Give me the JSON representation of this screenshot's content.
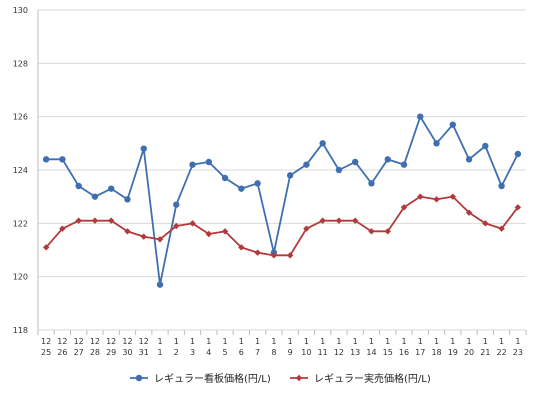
{
  "chart_data": {
    "type": "line",
    "title": "",
    "xlabel": "",
    "ylabel": "",
    "ylim": [
      118,
      130
    ],
    "y_ticks": [
      118,
      120,
      122,
      124,
      126,
      128,
      130
    ],
    "grid": "horizontal",
    "legend_position": "bottom",
    "categories": [
      {
        "month": "12",
        "day": "25"
      },
      {
        "month": "12",
        "day": "26"
      },
      {
        "month": "12",
        "day": "27"
      },
      {
        "month": "12",
        "day": "28"
      },
      {
        "month": "12",
        "day": "29"
      },
      {
        "month": "12",
        "day": "30"
      },
      {
        "month": "12",
        "day": "31"
      },
      {
        "month": "1",
        "day": "1"
      },
      {
        "month": "1",
        "day": "2"
      },
      {
        "month": "1",
        "day": "3"
      },
      {
        "month": "1",
        "day": "4"
      },
      {
        "month": "1",
        "day": "5"
      },
      {
        "month": "1",
        "day": "6"
      },
      {
        "month": "1",
        "day": "7"
      },
      {
        "month": "1",
        "day": "8"
      },
      {
        "month": "1",
        "day": "9"
      },
      {
        "month": "1",
        "day": "10"
      },
      {
        "month": "1",
        "day": "11"
      },
      {
        "month": "1",
        "day": "12"
      },
      {
        "month": "1",
        "day": "13"
      },
      {
        "month": "1",
        "day": "14"
      },
      {
        "month": "1",
        "day": "15"
      },
      {
        "month": "1",
        "day": "16"
      },
      {
        "month": "1",
        "day": "17"
      },
      {
        "month": "1",
        "day": "18"
      },
      {
        "month": "1",
        "day": "19"
      },
      {
        "month": "1",
        "day": "20"
      },
      {
        "month": "1",
        "day": "21"
      },
      {
        "month": "1",
        "day": "22"
      },
      {
        "month": "1",
        "day": "23"
      }
    ],
    "series": [
      {
        "name": "レギュラー看板価格(円/L)",
        "color": "#3f6fb0",
        "marker": "circle",
        "values": [
          124.4,
          124.4,
          123.4,
          123.0,
          123.3,
          122.9,
          124.8,
          119.7,
          122.7,
          124.2,
          124.3,
          123.7,
          123.3,
          123.5,
          120.9,
          123.8,
          124.2,
          125.0,
          124.0,
          124.3,
          123.5,
          124.4,
          124.2,
          126.0,
          125.0,
          125.7,
          124.4,
          124.9,
          123.4,
          124.6
        ]
      },
      {
        "name": "レギュラー実売価格(円/L)",
        "color": "#b23a3a",
        "marker": "diamond",
        "values": [
          121.1,
          121.8,
          122.1,
          122.1,
          122.1,
          121.7,
          121.5,
          121.4,
          121.9,
          122.0,
          121.6,
          121.7,
          121.1,
          120.9,
          120.8,
          120.8,
          121.8,
          122.1,
          122.1,
          122.1,
          121.7,
          121.7,
          122.6,
          123.0,
          122.9,
          123.0,
          122.4,
          122.0,
          121.8,
          122.6
        ]
      }
    ]
  }
}
